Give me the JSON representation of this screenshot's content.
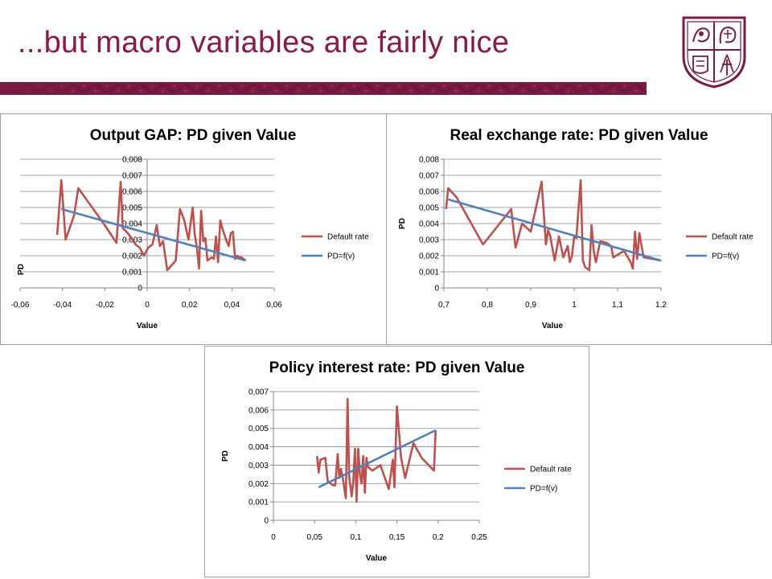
{
  "slide": {
    "title": "...but macro variables are fairly nice",
    "accent_color": "#7a1a42"
  },
  "logo": {
    "name": "university-seal-icon"
  },
  "chart_data": [
    {
      "type": "line",
      "title": "Output GAP: PD given Value",
      "xlabel": "Value",
      "ylabel": "PD",
      "xlim": [
        -0.06,
        0.06
      ],
      "ylim": [
        0,
        0.008
      ],
      "xticks": [
        "-0,06",
        "-0,04",
        "-0,02",
        "0",
        "0,02",
        "0,04",
        "0,06"
      ],
      "yticks": [
        "0",
        "0,001",
        "0,002",
        "0,003",
        "0,004",
        "0,005",
        "0,006",
        "0,007",
        "0,008"
      ],
      "grid": true,
      "legend": "right",
      "series": [
        {
          "name": "Default rate",
          "color": "#c0504d",
          "x": [
            -0.0425,
            -0.0405,
            -0.0385,
            -0.0345,
            -0.0325,
            -0.02,
            -0.0145,
            -0.0125,
            -0.0115,
            -0.0105,
            -0.0085,
            -0.0055,
            -0.0035,
            -0.0015,
            0.0005,
            0.0025,
            0.0045,
            0.006,
            0.0075,
            0.0095,
            0.0115,
            0.0135,
            0.0155,
            0.0175,
            0.0195,
            0.0215,
            0.0225,
            0.0235,
            0.0245,
            0.0255,
            0.0265,
            0.0275,
            0.0285,
            0.0295,
            0.0305,
            0.0315,
            0.0325,
            0.0335,
            0.0345,
            0.0355,
            0.0365,
            0.0375,
            0.0385,
            0.0395,
            0.0405,
            0.0415,
            0.0425,
            0.0435,
            0.0445,
            0.0455,
            0.0465
          ],
          "y": [
            0.0033,
            0.0067,
            0.003,
            0.0045,
            0.0062,
            0.0039,
            0.0028,
            0.0066,
            0.0037,
            0.0036,
            0.0033,
            0.0027,
            0.0025,
            0.002,
            0.0025,
            0.0027,
            0.0039,
            0.0026,
            0.0029,
            0.0011,
            0.0014,
            0.0017,
            0.0049,
            0.0042,
            0.003,
            0.005,
            0.0033,
            0.0025,
            0.0012,
            0.0048,
            0.0029,
            0.0031,
            0.0017,
            0.0018,
            0.0019,
            0.0018,
            0.0032,
            0.0016,
            0.0042,
            0.0037,
            0.0033,
            0.0029,
            0.0026,
            0.0034,
            0.0035,
            0.0018,
            0.002,
            0.0019,
            0.0019,
            0.0018,
            0.0017
          ]
        },
        {
          "name": "PD=f(v)",
          "color": "#4f81bd",
          "x": [
            -0.0405,
            0.0465
          ],
          "y": [
            0.0049,
            0.0017
          ]
        }
      ]
    },
    {
      "type": "line",
      "title": "Real exchange rate: PD given Value",
      "xlabel": "Value",
      "ylabel": "PD",
      "xlim": [
        0.7,
        1.2
      ],
      "ylim": [
        0,
        0.008
      ],
      "xticks": [
        "0,7",
        "0,8",
        "0,9",
        "1",
        "1,1",
        "1,2"
      ],
      "yticks": [
        "0",
        "0,001",
        "0,002",
        "0,003",
        "0,004",
        "0,005",
        "0,006",
        "0,007",
        "0,008"
      ],
      "grid": true,
      "legend": "right",
      "series": [
        {
          "name": "Default rate",
          "color": "#c0504d",
          "x": [
            0.705,
            0.71,
            0.73,
            0.79,
            0.855,
            0.865,
            0.88,
            0.9,
            0.925,
            0.935,
            0.94,
            0.945,
            0.955,
            0.965,
            0.975,
            0.985,
            0.99,
            0.995,
            1.0,
            1.005,
            1.015,
            1.02,
            1.025,
            1.035,
            1.04,
            1.045,
            1.05,
            1.06,
            1.075,
            1.085,
            1.09,
            1.115,
            1.13,
            1.135,
            1.14,
            1.145,
            1.15,
            1.16,
            1.2
          ],
          "y": [
            0.0049,
            0.0062,
            0.0056,
            0.0027,
            0.0049,
            0.0025,
            0.004,
            0.0035,
            0.0066,
            0.0027,
            0.0036,
            0.0032,
            0.0017,
            0.0032,
            0.0019,
            0.0026,
            0.0016,
            0.002,
            0.0032,
            0.0031,
            0.0067,
            0.0017,
            0.0013,
            0.0011,
            0.0039,
            0.0023,
            0.0016,
            0.0029,
            0.0028,
            0.0026,
            0.0019,
            0.0023,
            0.0016,
            0.0012,
            0.0035,
            0.0018,
            0.0034,
            0.0019,
            0.0017
          ]
        },
        {
          "name": "PD=f(v)",
          "color": "#4f81bd",
          "x": [
            0.71,
            1.2
          ],
          "y": [
            0.0055,
            0.0017
          ]
        }
      ]
    },
    {
      "type": "line",
      "title": "Policy interest rate: PD given Value",
      "xlabel": "Value",
      "ylabel": "PD",
      "xlim": [
        0,
        0.25
      ],
      "ylim": [
        0,
        0.007
      ],
      "xticks": [
        "0",
        "0,05",
        "0,1",
        "0,15",
        "0,2",
        "0,25"
      ],
      "yticks": [
        "0",
        "0,001",
        "0,002",
        "0,003",
        "0,004",
        "0,005",
        "0,006",
        "0,007"
      ],
      "grid": true,
      "legend": "right",
      "series": [
        {
          "name": "Default rate",
          "color": "#c0504d",
          "x": [
            0.053,
            0.055,
            0.057,
            0.063,
            0.066,
            0.073,
            0.075,
            0.078,
            0.08,
            0.082,
            0.085,
            0.088,
            0.09,
            0.092,
            0.095,
            0.097,
            0.099,
            0.101,
            0.103,
            0.105,
            0.107,
            0.109,
            0.111,
            0.113,
            0.115,
            0.12,
            0.13,
            0.14,
            0.145,
            0.147,
            0.15,
            0.155,
            0.16,
            0.17,
            0.18,
            0.195,
            0.197
          ],
          "y": [
            0.0035,
            0.0026,
            0.0033,
            0.0034,
            0.0021,
            0.0019,
            0.0019,
            0.0036,
            0.0023,
            0.0028,
            0.0021,
            0.0012,
            0.0066,
            0.0024,
            0.0013,
            0.0021,
            0.0039,
            0.001,
            0.0039,
            0.0025,
            0.002,
            0.0035,
            0.0015,
            0.0034,
            0.0029,
            0.0027,
            0.003,
            0.0017,
            0.0033,
            0.0018,
            0.0062,
            0.0034,
            0.0023,
            0.0042,
            0.0034,
            0.0027,
            0.0049
          ]
        },
        {
          "name": "PD=f(v)",
          "color": "#4f81bd",
          "x": [
            0.055,
            0.197
          ],
          "y": [
            0.0018,
            0.0049
          ]
        }
      ]
    }
  ]
}
